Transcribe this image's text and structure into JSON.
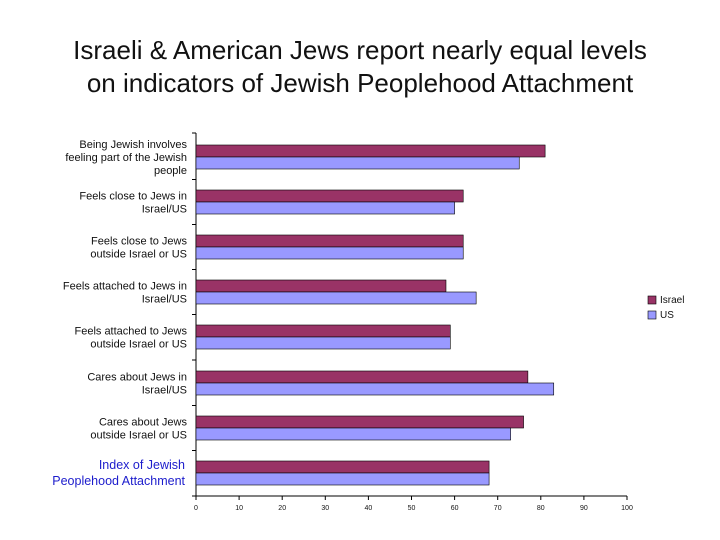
{
  "title": {
    "line1": "Israeli & American Jews report nearly equal levels",
    "line2": "on indicators of Jewish Peoplehood Attachment"
  },
  "chart_data": {
    "type": "bar",
    "orientation": "horizontal",
    "categories": [
      [
        "Being Jewish involves",
        "feeling part of the Jewish",
        "people"
      ],
      [
        "Feels close to Jews in",
        "Israel/US"
      ],
      [
        "Feels close to Jews",
        "outside Israel or US"
      ],
      [
        "Feels attached to Jews in",
        "Israel/US"
      ],
      [
        "Feels attached to Jews",
        "outside Israel or US"
      ],
      [
        "Cares about Jews in",
        "Israel/US"
      ],
      [
        "Cares about Jews",
        "outside Israel or US"
      ],
      [
        "Index of Jewish",
        "Peoplehood Attachment"
      ]
    ],
    "highlight_category_index": 7,
    "series": [
      {
        "name": "Israel",
        "color": "#993366",
        "values": [
          81,
          62,
          62,
          58,
          59,
          77,
          76,
          68
        ]
      },
      {
        "name": "US",
        "color": "#9999ff",
        "values": [
          75,
          60,
          62,
          65,
          59,
          83,
          73,
          68
        ]
      }
    ],
    "xlim": [
      0,
      100
    ],
    "xticks": [
      0,
      10,
      20,
      30,
      40,
      50,
      60,
      70,
      80,
      90,
      100
    ],
    "grid": false,
    "legend_position": "right"
  }
}
